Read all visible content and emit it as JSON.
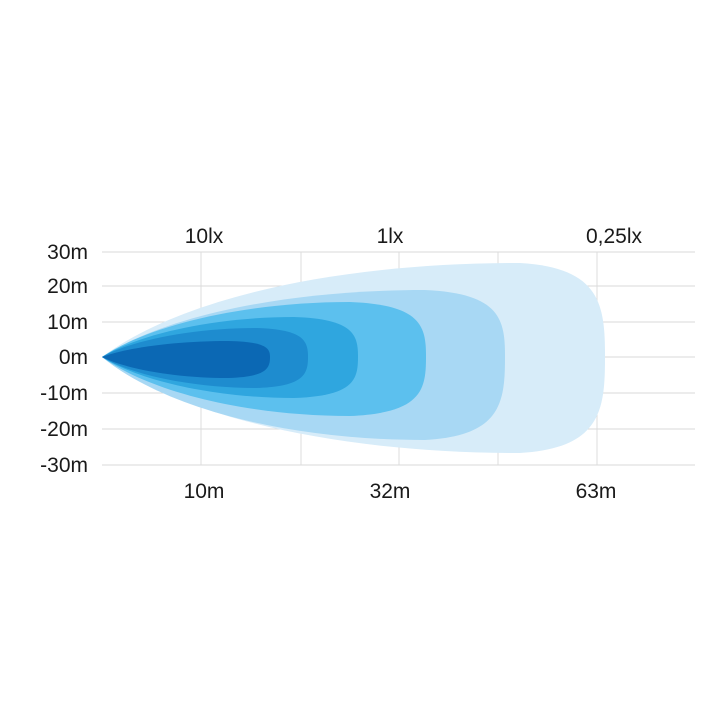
{
  "chart_data": {
    "type": "area",
    "title": "",
    "y_tick_labels": [
      "30m",
      "20m",
      "10m",
      "0m",
      "-10m",
      "-20m",
      "-30m"
    ],
    "x_tick_labels": [
      "10m",
      "32m",
      "63m"
    ],
    "illuminance_labels": [
      "10lx",
      "1lx",
      "0,25lx"
    ],
    "ylim": [
      -30,
      30
    ],
    "grid": true,
    "colors": [
      "#d7ecf9",
      "#a8d8f4",
      "#5cc0ee",
      "#2fa6df",
      "#1e8ccf",
      "#0b68b4"
    ]
  }
}
